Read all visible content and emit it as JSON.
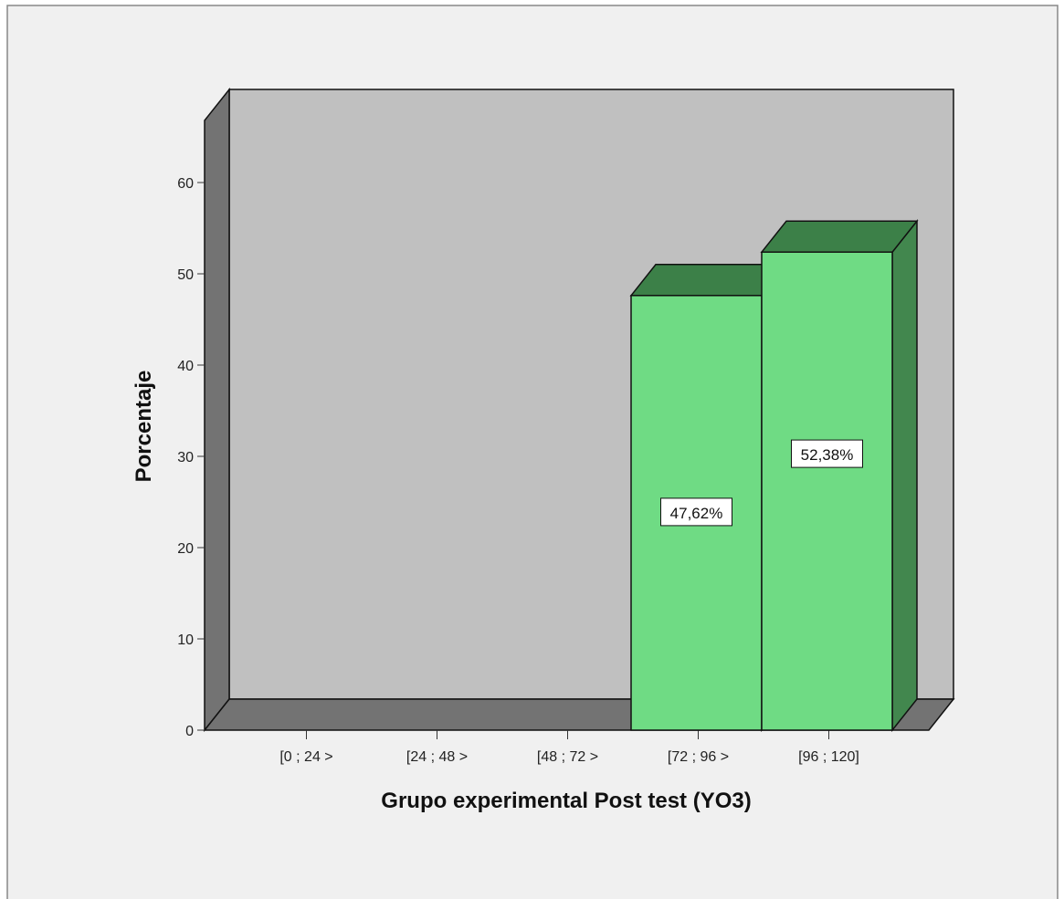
{
  "chart_data": {
    "type": "bar",
    "title": "",
    "xlabel": "Grupo experimental Post test (YO3)",
    "ylabel": "Porcentaje",
    "categories": [
      "[0 ; 24 >",
      "[24 ; 48 >",
      "[48 ; 72 >",
      "[72 ; 96 >",
      "[96 ; 120]"
    ],
    "values": [
      0,
      0,
      0,
      47.62,
      52.38
    ],
    "data_labels": [
      "",
      "",
      "",
      "47,62%",
      "52,38%"
    ],
    "yticks": [
      "0",
      "10",
      "20",
      "30",
      "40",
      "50",
      "60"
    ],
    "ylim": [
      0,
      60
    ],
    "grid": false,
    "legend": "none",
    "three_d": true,
    "colors": {
      "bar_front": "#6fdb84",
      "bar_top": "#3c8048",
      "bar_side": "#42874e",
      "bar_edge": "#111111",
      "wall_back": "#c0c0c0",
      "wall_left": "#737373",
      "floor": "#737373",
      "page_background": "#f0f0f0",
      "border": "#888888",
      "label_box": "#ffffff"
    }
  }
}
